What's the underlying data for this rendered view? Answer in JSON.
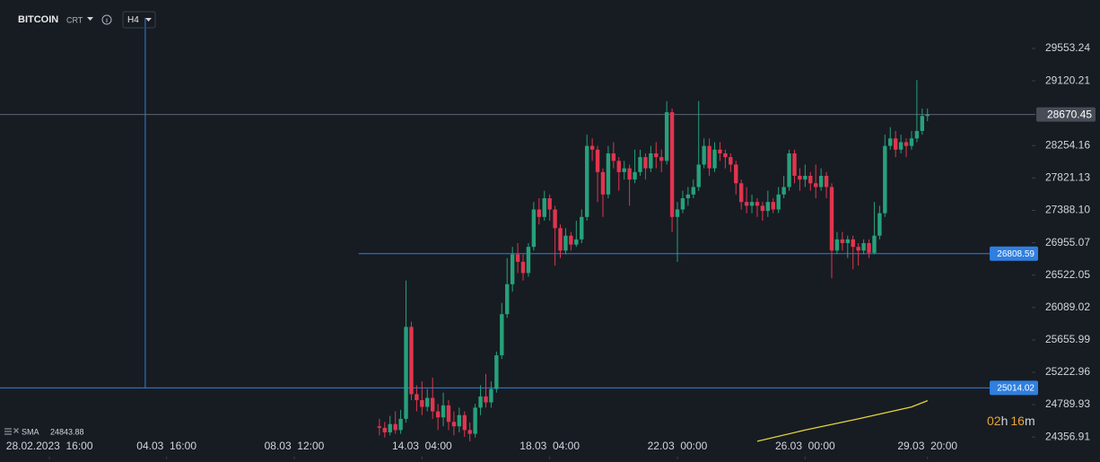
{
  "chart_data": {
    "type": "candlestick",
    "symbol": "BITCOIN",
    "mode": "CRT",
    "timeframe": "H4",
    "countdown": [
      "02",
      "h",
      "16",
      "m"
    ],
    "up_color": "#26a17b",
    "down_color": "#e0354f",
    "xlim": [
      -71.3,
      122.6
    ],
    "ylim": [
      24023,
      30201
    ],
    "xticks": [
      {
        "value": -62,
        "label": "28.02.2023  16:00"
      },
      {
        "value": -40,
        "label": "04.03  16:00"
      },
      {
        "value": -16,
        "label": "08.03  12:00"
      },
      {
        "value": 8,
        "label": "14.03  04:00"
      },
      {
        "value": 32,
        "label": "18.03  04:00"
      },
      {
        "value": 56,
        "label": "22.03  00:00"
      },
      {
        "value": 80,
        "label": "26.03  00:00"
      },
      {
        "value": 103,
        "label": "29.03  20:00"
      }
    ],
    "yticks": [
      29553.24,
      29120.21,
      28254.16,
      27821.13,
      {
        "value": 27388.1,
        "label": "27388.10"
      },
      26955.07,
      26522.05,
      26089.02,
      25655.99,
      25222.96,
      24789.93,
      24356.91
    ],
    "open": [
      24500,
      24480,
      24420,
      24530,
      24450,
      24600,
      25830,
      24930,
      24850,
      24760,
      24880,
      24700,
      24620,
      24780,
      24560,
      24500,
      24650,
      24450,
      24400,
      24750,
      24900,
      24820,
      25000,
      25450,
      26000,
      26400,
      26800,
      26700,
      26550,
      26900,
      27400,
      27300,
      27550,
      27400,
      27150,
      26850,
      27050,
      26930,
      27000,
      27300,
      28250,
      28200,
      27900,
      27600,
      28150,
      28050,
      27900,
      27950,
      27800,
      27900,
      28100,
      27950,
      28150,
      28100,
      28050,
      28700,
      27300,
      27400,
      27550,
      27600,
      27700,
      28000,
      28250,
      27950,
      28200,
      28150,
      28100,
      28000,
      27750,
      27500,
      27450,
      27500,
      27450,
      27380,
      27500,
      27400,
      27600,
      27700,
      28150,
      27850,
      27800,
      27850,
      27750,
      27700,
      27850,
      27700,
      26850,
      27000,
      26950,
      27000,
      26900,
      26850,
      26950,
      26820,
      27050,
      27350,
      28250,
      28350,
      28200,
      28300,
      28250,
      28350,
      28450,
      28650
    ],
    "high": [
      24600,
      24560,
      24640,
      24700,
      24720,
      26450,
      25900,
      25050,
      25100,
      25000,
      25150,
      24800,
      24950,
      24850,
      24700,
      24750,
      24700,
      24550,
      24800,
      25050,
      25200,
      25100,
      25500,
      26150,
      26750,
      26900,
      26950,
      26800,
      26950,
      27500,
      27550,
      27650,
      27600,
      27450,
      27200,
      27150,
      27100,
      27250,
      27400,
      28400,
      28350,
      28250,
      27950,
      28250,
      28300,
      28100,
      28050,
      28000,
      28200,
      28200,
      28150,
      28250,
      28300,
      28200,
      28850,
      28750,
      27500,
      27650,
      27700,
      27800,
      28850,
      28350,
      28350,
      28300,
      28300,
      28200,
      28150,
      28050,
      27800,
      27700,
      27600,
      27550,
      27500,
      27650,
      27550,
      27700,
      27850,
      28200,
      28200,
      27950,
      28000,
      27900,
      28000,
      27950,
      27900,
      27750,
      27100,
      27100,
      27050,
      27050,
      26950,
      27000,
      27000,
      27500,
      27450,
      28400,
      28500,
      28450,
      28400,
      28350,
      28450,
      29130,
      28750,
      28750
    ],
    "low": [
      24380,
      24350,
      24380,
      24400,
      24400,
      24550,
      24850,
      24700,
      24650,
      24700,
      24600,
      24450,
      24500,
      24450,
      24380,
      24420,
      24360,
      24300,
      24350,
      24650,
      24750,
      24750,
      24950,
      25400,
      25950,
      26300,
      26550,
      26450,
      26500,
      26850,
      27200,
      27250,
      27250,
      26650,
      26750,
      26800,
      26850,
      26900,
      26950,
      27250,
      28050,
      27500,
      27300,
      27550,
      27950,
      27650,
      27800,
      27450,
      27750,
      27850,
      27800,
      27900,
      27950,
      27900,
      28000,
      27100,
      26700,
      27350,
      27450,
      27550,
      27650,
      27950,
      27850,
      27900,
      28050,
      27950,
      27900,
      27600,
      27400,
      27350,
      27350,
      27300,
      27250,
      27300,
      27350,
      27350,
      27550,
      27650,
      27750,
      27650,
      27700,
      27650,
      27550,
      27650,
      27550,
      26480,
      26800,
      26850,
      26750,
      26600,
      26650,
      26800,
      26750,
      26800,
      27000,
      27300,
      28200,
      28100,
      28150,
      28100,
      28200,
      28300,
      28400,
      28580
    ],
    "close": [
      24480,
      24420,
      24530,
      24450,
      24600,
      25830,
      24930,
      24850,
      24760,
      24880,
      24700,
      24620,
      24780,
      24560,
      24500,
      24650,
      24450,
      24400,
      24750,
      24900,
      24820,
      25000,
      25450,
      26000,
      26400,
      26800,
      26700,
      26550,
      26900,
      27400,
      27300,
      27550,
      27400,
      27150,
      26850,
      27050,
      26930,
      27000,
      27300,
      28250,
      28200,
      27900,
      27600,
      28150,
      28050,
      27900,
      27950,
      27800,
      27900,
      28100,
      27950,
      28150,
      28100,
      28050,
      28700,
      27300,
      27400,
      27550,
      27600,
      27700,
      28000,
      28250,
      27950,
      28200,
      28150,
      28100,
      28000,
      27750,
      27500,
      27450,
      27500,
      27450,
      27380,
      27500,
      27400,
      27600,
      27700,
      28150,
      27850,
      27800,
      27850,
      27750,
      27700,
      27850,
      27700,
      26850,
      27000,
      26950,
      27000,
      26900,
      26850,
      26950,
      26820,
      27050,
      27350,
      28250,
      28350,
      28200,
      28300,
      28250,
      28350,
      28450,
      28650,
      28670
    ],
    "sma": {
      "name": "SMA",
      "color": "#e6d23c",
      "x": [
        71,
        80,
        90,
        100,
        103
      ],
      "values": [
        24300,
        24450,
        24600,
        24760,
        24843.88
      ]
    },
    "price_lines": [
      {
        "value": 28670.45,
        "color": "#5d6470",
        "label_bg": "#474c57",
        "from_x": -71.3
      },
      {
        "value": 26808.59,
        "color": "#2f7fe0",
        "label_bg": "#2f7fe0",
        "from_x": -3.9
      },
      {
        "value": 25014.02,
        "color": "#2f7fe0",
        "label_bg": "#2f7fe0",
        "from_x": -71.3
      }
    ],
    "vertical_line": {
      "x": -44,
      "from": 25014.02,
      "to": 29960,
      "color": "#2f7fe0"
    }
  }
}
